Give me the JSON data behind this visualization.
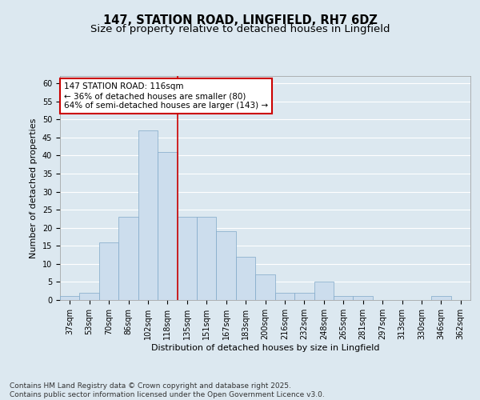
{
  "title1": "147, STATION ROAD, LINGFIELD, RH7 6DZ",
  "title2": "Size of property relative to detached houses in Lingfield",
  "xlabel": "Distribution of detached houses by size in Lingfield",
  "ylabel": "Number of detached properties",
  "categories": [
    "37sqm",
    "53sqm",
    "70sqm",
    "86sqm",
    "102sqm",
    "118sqm",
    "135sqm",
    "151sqm",
    "167sqm",
    "183sqm",
    "200sqm",
    "216sqm",
    "232sqm",
    "248sqm",
    "265sqm",
    "281sqm",
    "297sqm",
    "313sqm",
    "330sqm",
    "346sqm",
    "362sqm"
  ],
  "values": [
    1,
    2,
    16,
    23,
    47,
    41,
    23,
    23,
    19,
    12,
    7,
    2,
    2,
    5,
    1,
    1,
    0,
    0,
    0,
    1,
    0
  ],
  "bar_color": "#ccdded",
  "bar_edge_color": "#7fa8c8",
  "fig_bg_color": "#dce8f0",
  "plot_bg_color": "#dce8f0",
  "grid_color": "#ffffff",
  "red_line_index": 5,
  "annotation_text": "147 STATION ROAD: 116sqm\n← 36% of detached houses are smaller (80)\n64% of semi-detached houses are larger (143) →",
  "annotation_box_color": "#ffffff",
  "annotation_box_edge": "#cc0000",
  "ylim": [
    0,
    62
  ],
  "yticks": [
    0,
    5,
    10,
    15,
    20,
    25,
    30,
    35,
    40,
    45,
    50,
    55,
    60
  ],
  "footer": "Contains HM Land Registry data © Crown copyright and database right 2025.\nContains public sector information licensed under the Open Government Licence v3.0.",
  "title_fontsize": 10.5,
  "subtitle_fontsize": 9.5,
  "axis_label_fontsize": 8,
  "tick_fontsize": 7,
  "footer_fontsize": 6.5,
  "annotation_fontsize": 7.5
}
